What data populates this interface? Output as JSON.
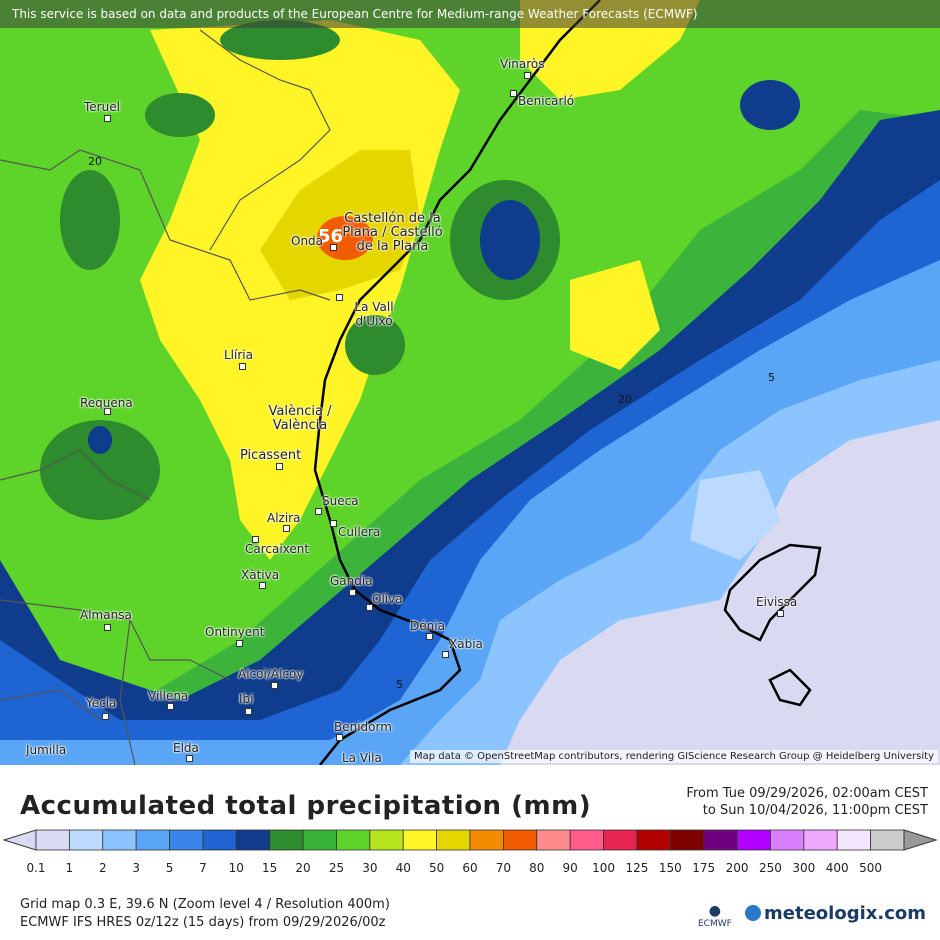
{
  "banner": "This service is based on data and products of the European Centre for Medium-range Weather Forecasts (ECMWF)",
  "map": {
    "attribution": "Map data © OpenStreetMap contributors, rendering GIScience Research Group @ Heidelberg University",
    "max_value": "56",
    "contour_labels": [
      "20",
      "20",
      "5",
      "5"
    ],
    "cities": [
      "Vinaròs",
      "Benicarló",
      "Teruel",
      "Castellón de la Plana / Castelló de la Plana",
      "Onda",
      "La Vall d'Uixó",
      "Llíria",
      "Requena",
      "València / València",
      "Picassent",
      "Sueca",
      "Alzira",
      "Cullera",
      "Carcaixent",
      "Xàtiva",
      "Gandia",
      "Oliva",
      "Almansa",
      "Ontinyent",
      "Dénia",
      "Xàbia",
      "Alcoi/Alcoy",
      "Villena",
      "Yecla",
      "Ibi",
      "Eivissa",
      "Benidorm",
      "Jumilla",
      "Elda",
      "La Vila"
    ]
  },
  "legend": {
    "title": "Accumulated total precipitation (mm)",
    "from": "From Tue 09/29/2026, 02:00am CEST",
    "to": "to Sun 10/04/2026, 11:00pm CEST",
    "ticks": [
      "0.1",
      "1",
      "2",
      "3",
      "5",
      "7",
      "10",
      "15",
      "20",
      "25",
      "30",
      "40",
      "50",
      "60",
      "70",
      "80",
      "90",
      "100",
      "125",
      "150",
      "175",
      "200",
      "250",
      "300",
      "400",
      "500"
    ],
    "colors": [
      "#d9d9f2",
      "#bcd9ff",
      "#8cc4ff",
      "#5aa5f5",
      "#3a86e8",
      "#1e64d2",
      "#0f3c8c",
      "#2e8b2e",
      "#36b336",
      "#5ed42a",
      "#b5e61d",
      "#fff426",
      "#e6d600",
      "#f28c00",
      "#f25c00",
      "#ff8c8c",
      "#ff5c8c",
      "#e6244f",
      "#b30000",
      "#800000",
      "#6e0080",
      "#b400ff",
      "#d880ff",
      "#f0a8ff",
      "#f5e6ff",
      "#cccccc"
    ],
    "grid_info": "Grid map 0.3 E, 39.6 N (Zoom level 4 / Resolution 400m)",
    "model_info": "ECMWF IFS HRES 0z/12z (15 days) from 09/29/2026/00z",
    "logo": "meteologix.com",
    "ecmwf_logo": "ECMWF"
  }
}
